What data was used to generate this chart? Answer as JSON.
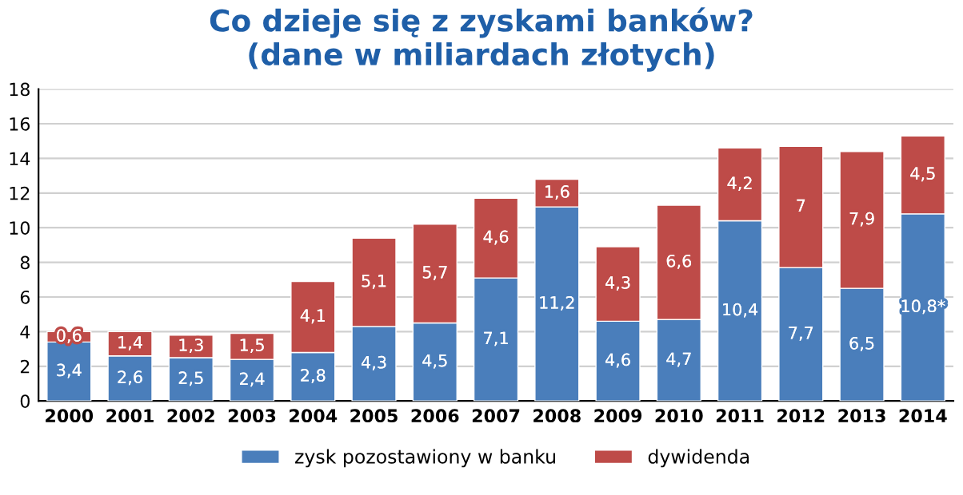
{
  "chart_data": {
    "type": "bar",
    "title": "Co dzieje się z zyskami banków?\n(dane w miliardach złotych)",
    "stacked": true,
    "categories": [
      "2000",
      "2001",
      "2002",
      "2003",
      "2004",
      "2005",
      "2006",
      "2007",
      "2008",
      "2009",
      "2010",
      "2011",
      "2012",
      "2013",
      "2014"
    ],
    "series": [
      {
        "name": "zysk pozostawiony w banku",
        "color": "#4a7ebb",
        "values": [
          3.4,
          2.6,
          2.5,
          2.4,
          2.8,
          4.3,
          4.5,
          7.1,
          11.2,
          4.6,
          4.7,
          10.4,
          7.7,
          6.5,
          10.8
        ],
        "value_labels": [
          "3,4",
          "2,6",
          "2,5",
          "2,4",
          "2,8",
          "4,3",
          "4,5",
          "7,1",
          "11,2",
          "4,6",
          "4,7",
          "10,4",
          "7,7",
          "6,5",
          "10,8*"
        ]
      },
      {
        "name": "dywidenda",
        "color": "#be4b48",
        "values": [
          0.6,
          1.4,
          1.3,
          1.5,
          4.1,
          5.1,
          5.7,
          4.6,
          1.6,
          4.3,
          6.6,
          4.2,
          7,
          7.9,
          4.5
        ],
        "value_labels": [
          "0,6",
          "1,4",
          "1,3",
          "1,5",
          "4,1",
          "5,1",
          "5,7",
          "4,6",
          "1,6",
          "4,3",
          "6,6",
          "4,2",
          "7",
          "7,9",
          "4,5"
        ]
      }
    ],
    "ylim": [
      0,
      18
    ],
    "yticks": [
      0,
      2,
      4,
      6,
      8,
      10,
      12,
      14,
      16,
      18
    ],
    "grid": "y",
    "legend": "bottom"
  }
}
